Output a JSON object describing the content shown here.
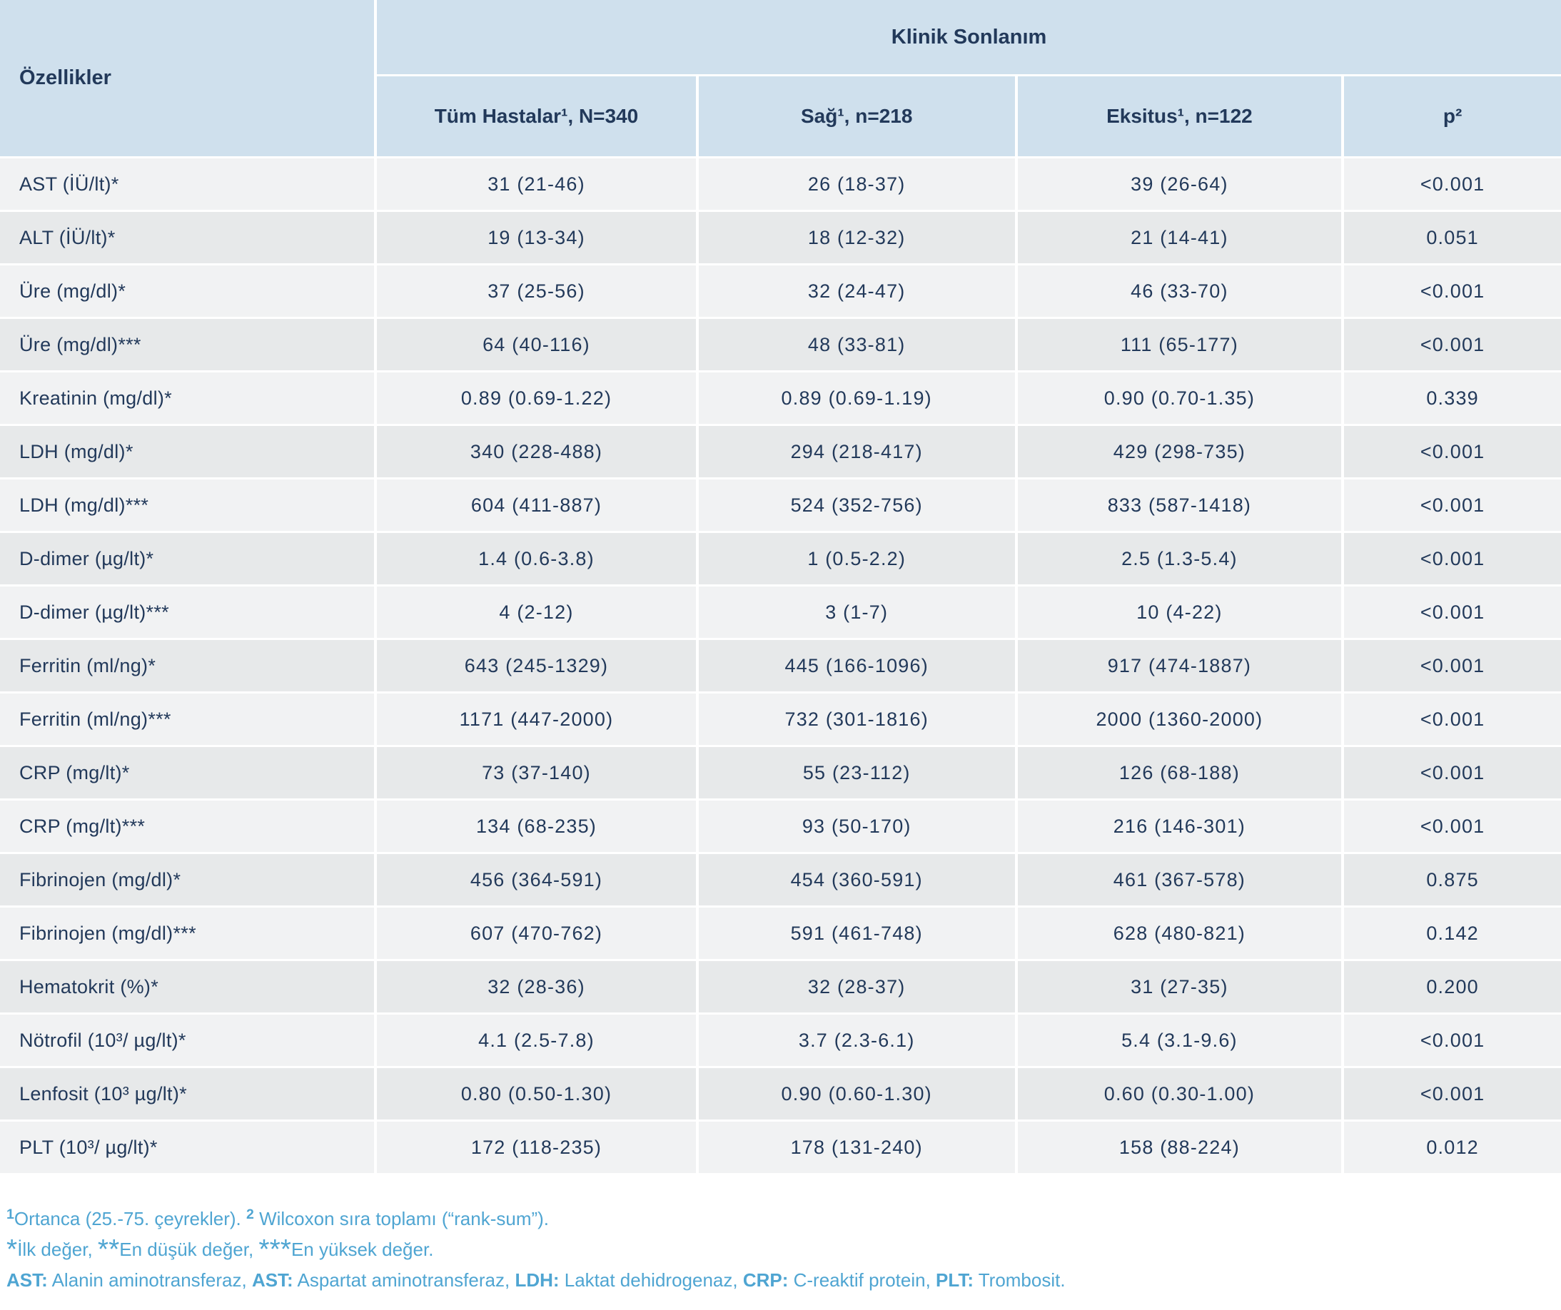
{
  "colors": {
    "header_bg": "#cfe0ed",
    "row_light": "#f1f2f3",
    "row_dark": "#e7e9ea",
    "text_navy": "#22395a",
    "footnote_blue": "#4fa5d2",
    "separator": "#ffffff"
  },
  "header": {
    "features_label": "Özellikler",
    "group_label": "Klinik Sonlanım",
    "columns": [
      "Tüm Hastalar¹, N=340",
      "Sağ¹, n=218",
      "Eksitus¹, n=122",
      "p²"
    ]
  },
  "rows": [
    {
      "label": "AST (İÜ/lt)*",
      "values": [
        "31 (21-46)",
        "26 (18-37)",
        "39 (26-64)",
        "<0.001"
      ]
    },
    {
      "label": "ALT (İÜ/lt)*",
      "values": [
        "19 (13-34)",
        "18 (12-32)",
        "21 (14-41)",
        "0.051"
      ]
    },
    {
      "label": "Üre (mg/dl)*",
      "values": [
        "37 (25-56)",
        "32 (24-47)",
        "46 (33-70)",
        "<0.001"
      ]
    },
    {
      "label": "Üre (mg/dl)***",
      "values": [
        "64 (40-116)",
        "48 (33-81)",
        "111 (65-177)",
        "<0.001"
      ]
    },
    {
      "label": "Kreatinin (mg/dl)*",
      "values": [
        "0.89 (0.69-1.22)",
        "0.89 (0.69-1.19)",
        "0.90 (0.70-1.35)",
        "0.339"
      ]
    },
    {
      "label": "LDH (mg/dl)*",
      "values": [
        "340 (228-488)",
        "294 (218-417)",
        "429 (298-735)",
        "<0.001"
      ]
    },
    {
      "label": "LDH (mg/dl)***",
      "values": [
        "604 (411-887)",
        "524 (352-756)",
        "833 (587-1418)",
        "<0.001"
      ]
    },
    {
      "label": "D-dimer (µg/lt)*",
      "values": [
        "1.4 (0.6-3.8)",
        "1 (0.5-2.2)",
        "2.5 (1.3-5.4)",
        "<0.001"
      ]
    },
    {
      "label": "D-dimer (µg/lt)***",
      "values": [
        "4 (2-12)",
        "3 (1-7)",
        "10 (4-22)",
        "<0.001"
      ]
    },
    {
      "label": "Ferritin (ml/ng)*",
      "values": [
        "643 (245-1329)",
        "445 (166-1096)",
        "917 (474-1887)",
        "<0.001"
      ]
    },
    {
      "label": "Ferritin (ml/ng)***",
      "values": [
        "1171 (447-2000)",
        "732 (301-1816)",
        "2000 (1360-2000)",
        "<0.001"
      ]
    },
    {
      "label": "CRP (mg/lt)*",
      "values": [
        "73 (37-140)",
        "55 (23-112)",
        "126 (68-188)",
        "<0.001"
      ]
    },
    {
      "label": "CRP (mg/lt)***",
      "values": [
        "134 (68-235)",
        "93 (50-170)",
        "216 (146-301)",
        "<0.001"
      ]
    },
    {
      "label": "Fibrinojen (mg/dl)*",
      "values": [
        "456 (364-591)",
        "454 (360-591)",
        "461 (367-578)",
        "0.875"
      ]
    },
    {
      "label": "Fibrinojen (mg/dl)***",
      "values": [
        "607 (470-762)",
        "591 (461-748)",
        "628 (480-821)",
        "0.142"
      ]
    },
    {
      "label": "Hematokrit (%)*",
      "values": [
        "32 (28-36)",
        "32 (28-37)",
        "31 (27-35)",
        "0.200"
      ]
    },
    {
      "label": "Nötrofil (10³/ µg/lt)*",
      "values": [
        "4.1 (2.5-7.8)",
        "3.7 (2.3-6.1)",
        "5.4 (3.1-9.6)",
        "<0.001"
      ]
    },
    {
      "label": "Lenfosit (10³ µg/lt)*",
      "values": [
        "0.80 (0.50-1.30)",
        "0.90 (0.60-1.30)",
        "0.60 (0.30-1.00)",
        "<0.001"
      ]
    },
    {
      "label": "PLT (10³/ µg/lt)*",
      "values": [
        "172 (118-235)",
        "178 (131-240)",
        "158 (88-224)",
        "0.012"
      ]
    }
  ],
  "footnotes": [
    {
      "segments": [
        {
          "text": "1",
          "cls": "sup"
        },
        {
          "text": "Ortanca (25.-75. çeyrekler). ",
          "cls": ""
        },
        {
          "text": "2",
          "cls": "sup"
        },
        {
          "text": " Wilcoxon sıra toplamı (“rank-sum”).",
          "cls": ""
        }
      ]
    },
    {
      "segments": [
        {
          "text": "*",
          "cls": "star"
        },
        {
          "text": "İlk değer, ",
          "cls": ""
        },
        {
          "text": "**",
          "cls": "star"
        },
        {
          "text": "En düşük değer, ",
          "cls": ""
        },
        {
          "text": "***",
          "cls": "star"
        },
        {
          "text": "En yüksek değer.",
          "cls": ""
        }
      ]
    },
    {
      "segments": [
        {
          "text": "AST:",
          "cls": "b"
        },
        {
          "text": " Alanin aminotransferaz, ",
          "cls": ""
        },
        {
          "text": "AST:",
          "cls": "b"
        },
        {
          "text": " Aspartat aminotransferaz, ",
          "cls": ""
        },
        {
          "text": "LDH:",
          "cls": "b"
        },
        {
          "text": " Laktat dehidrogenaz, ",
          "cls": ""
        },
        {
          "text": "CRP:",
          "cls": "b"
        },
        {
          "text": " C-reaktif protein, ",
          "cls": ""
        },
        {
          "text": "PLT:",
          "cls": "b"
        },
        {
          "text": " Trombosit.",
          "cls": ""
        }
      ]
    }
  ]
}
